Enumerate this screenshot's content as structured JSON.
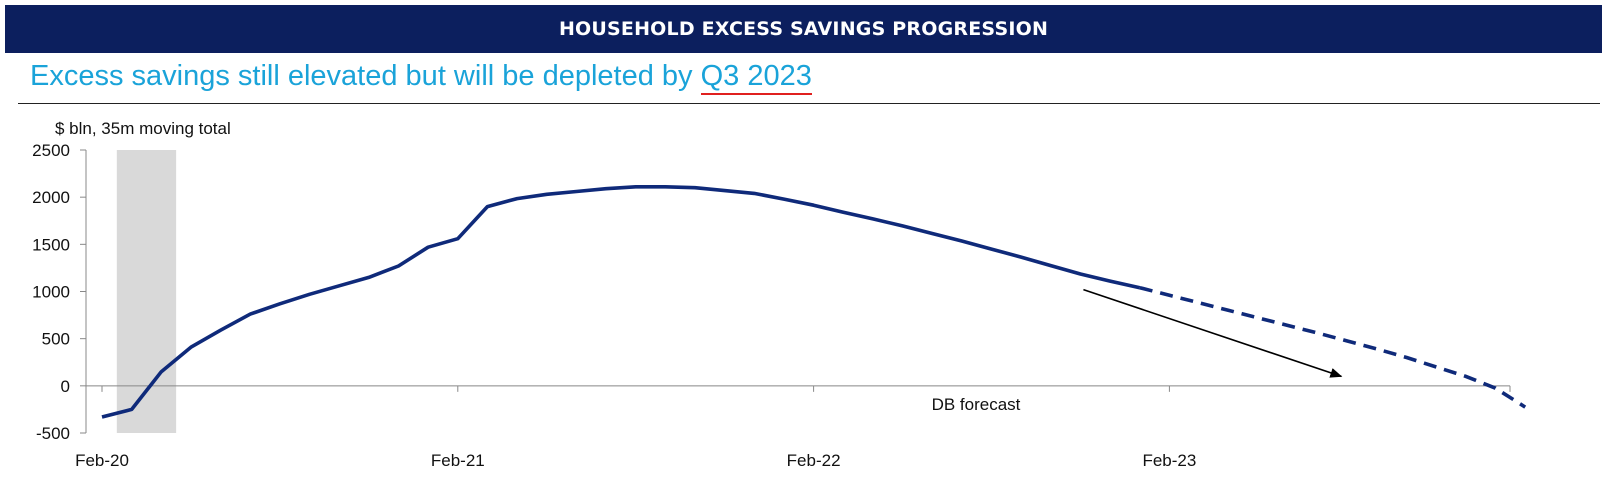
{
  "header": {
    "banner_title": "HOUSEHOLD EXCESS SAVINGS PROGRESSION",
    "subtitle_prefix": "Excess savings still elevated but will be depleted by ",
    "subtitle_highlight": "Q3 2023"
  },
  "chart_data": {
    "type": "line",
    "ylabel": "$ bln, 35m moving total",
    "ylim": [
      -500,
      2500
    ],
    "yticks": [
      2500,
      2000,
      1500,
      1000,
      500,
      0,
      -500
    ],
    "xticks": [
      "Feb-20",
      "Feb-21",
      "Feb-22",
      "Feb-23"
    ],
    "grid": false,
    "annotation": "DB forecast",
    "shaded_region": {
      "from_month_index": 1,
      "to_month_index": 3,
      "color": "#d9d9d9"
    },
    "colors": {
      "line": "#0f2a7a",
      "arrow": "#000000",
      "shade": "#d9d9d9"
    },
    "series": [
      {
        "style": "solid",
        "x": [
          0,
          1,
          2,
          3,
          4,
          5,
          6,
          7,
          8,
          9,
          10,
          11,
          12,
          13,
          14,
          15,
          16,
          17,
          18,
          19,
          20,
          21,
          22,
          23,
          24,
          25,
          26,
          27,
          28,
          29,
          30,
          31,
          32,
          33,
          34,
          35
        ],
        "values": [
          -330,
          -250,
          150,
          410,
          590,
          760,
          870,
          970,
          1060,
          1150,
          1270,
          1470,
          1560,
          1900,
          1985,
          2030,
          2060,
          2090,
          2110,
          2110,
          2100,
          2070,
          2040,
          1980,
          1915,
          1840,
          1770,
          1695,
          1615,
          1535,
          1450,
          1365,
          1275,
          1185,
          1110,
          1040
        ]
      },
      {
        "style": "dashed",
        "x": [
          35,
          36,
          37,
          38,
          39,
          40,
          41,
          42,
          43,
          44,
          45,
          46,
          47,
          48
        ],
        "values": [
          1040,
          960,
          880,
          800,
          720,
          640,
          560,
          475,
          390,
          300,
          200,
          100,
          -25,
          -225
        ]
      }
    ]
  }
}
